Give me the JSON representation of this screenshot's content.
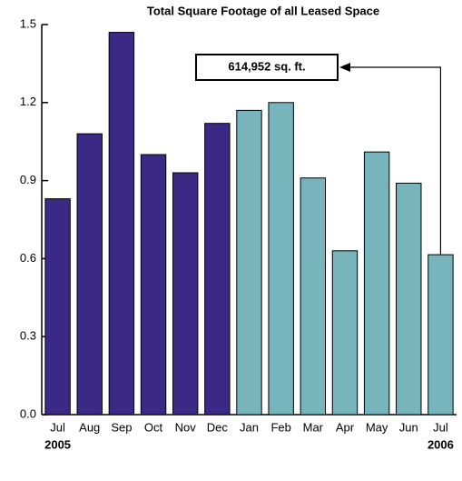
{
  "chart_data": {
    "type": "bar",
    "title": "Total Square Footage of all Leased Space",
    "categories": [
      "Jul",
      "Aug",
      "Sep",
      "Oct",
      "Nov",
      "Dec",
      "Jan",
      "Feb",
      "Mar",
      "Apr",
      "May",
      "Jun",
      "Jul"
    ],
    "values": [
      0.83,
      1.08,
      1.47,
      1.0,
      0.93,
      1.12,
      1.17,
      1.2,
      0.91,
      0.63,
      1.01,
      0.89,
      0.615
    ],
    "colors": [
      "#3b2a85",
      "#3b2a85",
      "#3b2a85",
      "#3b2a85",
      "#3b2a85",
      "#3b2a85",
      "#78b4bc",
      "#78b4bc",
      "#78b4bc",
      "#78b4bc",
      "#78b4bc",
      "#78b4bc",
      "#78b4bc"
    ],
    "year_labels": [
      "2005",
      "2006"
    ],
    "annotation": "614,952 sq. ft.",
    "ylim": [
      0,
      1.5
    ],
    "yticks": [
      {
        "value": 0,
        "label": "0.0"
      },
      0.3,
      0.6,
      0.9,
      1.2,
      1.5
    ]
  }
}
